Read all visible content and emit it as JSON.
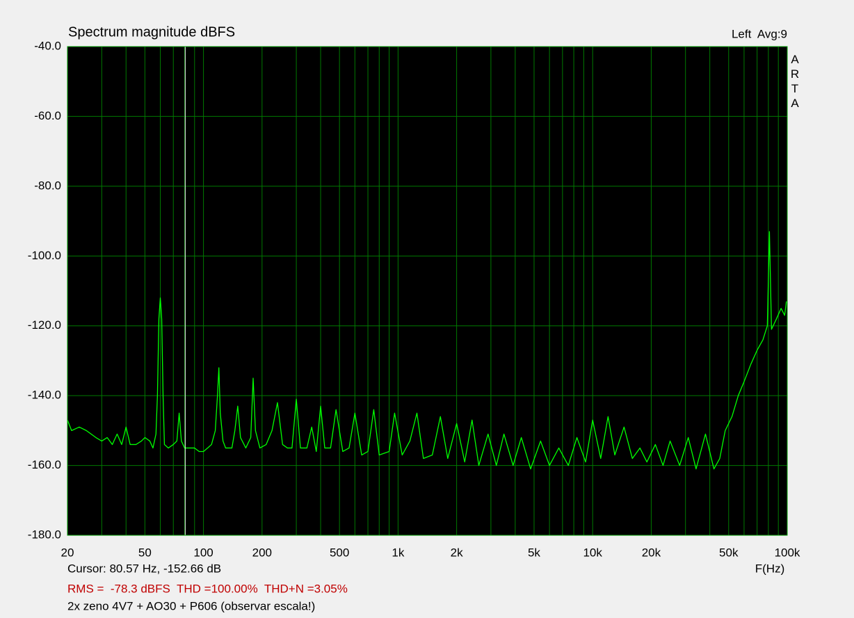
{
  "chart_data": {
    "type": "line",
    "title": "Spectrum magnitude dBFS",
    "channel_label": "Left  Avg:9",
    "side_label": "ARTA",
    "xlabel": "F(Hz)",
    "cursor": {
      "x": 80.57,
      "y": -152.66,
      "text": "Cursor: 80.57 Hz, -152.66 dB"
    },
    "stats": "RMS =  -78.3 dBFS  THD =100.00%  THD+N =3.05%",
    "description": "2x zeno 4V7 + AO30 + P606 (observar escala!)",
    "xscale": "log",
    "grid": true,
    "xlim": [
      20,
      100000
    ],
    "ylim": [
      -180,
      -40
    ],
    "xticks": [
      20,
      50,
      100,
      200,
      500,
      {
        "value": 1000,
        "label": "1k"
      },
      {
        "value": 2000,
        "label": "2k"
      },
      {
        "value": 5000,
        "label": "5k"
      },
      {
        "value": 10000,
        "label": "10k"
      },
      {
        "value": 20000,
        "label": "20k"
      },
      {
        "value": 50000,
        "label": "50k"
      },
      {
        "value": 100000,
        "label": "100k"
      }
    ],
    "xgrid_minor": [
      30,
      40,
      60,
      70,
      80,
      90,
      300,
      400,
      600,
      700,
      800,
      900,
      3000,
      4000,
      6000,
      7000,
      8000,
      9000,
      30000,
      40000,
      60000,
      70000,
      80000,
      90000
    ],
    "yticks": [
      {
        "value": -40,
        "label": "-40.0"
      },
      {
        "value": -60,
        "label": "-60.0"
      },
      {
        "value": -80,
        "label": "-80.0"
      },
      {
        "value": -100,
        "label": "-100.0"
      },
      {
        "value": -120,
        "label": "-120.0"
      },
      {
        "value": -140,
        "label": "-140.0"
      },
      {
        "value": -160,
        "label": "-160.0"
      },
      {
        "value": -180,
        "label": "-180.0"
      }
    ],
    "x": [
      20,
      21,
      23,
      25,
      28,
      30,
      32,
      34,
      36,
      38,
      40,
      42,
      45,
      48,
      50,
      53,
      55,
      57,
      58,
      59,
      60,
      61,
      62,
      63,
      66,
      70,
      73,
      75,
      77,
      80,
      85,
      90,
      95,
      100,
      105,
      110,
      115,
      118,
      120,
      122,
      126,
      130,
      140,
      145,
      150,
      155,
      165,
      175,
      180,
      185,
      195,
      210,
      225,
      240,
      255,
      270,
      285,
      300,
      315,
      340,
      360,
      380,
      400,
      420,
      450,
      480,
      520,
      560,
      600,
      650,
      700,
      750,
      800,
      900,
      960,
      1050,
      1150,
      1250,
      1350,
      1500,
      1650,
      1800,
      2000,
      2200,
      2400,
      2600,
      2900,
      3200,
      3500,
      3900,
      4300,
      4800,
      5400,
      6000,
      6700,
      7500,
      8300,
      9200,
      10000,
      11000,
      12000,
      13000,
      14500,
      16000,
      17500,
      19000,
      21000,
      23000,
      25000,
      28000,
      31000,
      34000,
      38000,
      42000,
      45000,
      48000,
      52000,
      56000,
      60000,
      65000,
      70000,
      75000,
      79000,
      81000,
      83000,
      88000,
      93000,
      97000,
      99000
    ],
    "series": [
      {
        "name": "Left",
        "color": "#00ff00",
        "values": [
          -147,
          -150,
          -149,
          -150,
          -152,
          -153,
          -152,
          -154,
          -151,
          -154,
          -149,
          -154,
          -154,
          -153,
          -152,
          -153,
          -155,
          -151,
          -140,
          -118,
          -112,
          -118,
          -140,
          -154,
          -155,
          -154,
          -153,
          -145,
          -153,
          -155,
          -155,
          -155,
          -156,
          -156,
          -155,
          -154,
          -150,
          -140,
          -132,
          -145,
          -153,
          -155,
          -155,
          -150,
          -143,
          -152,
          -155,
          -152,
          -135,
          -150,
          -155,
          -154,
          -150,
          -142,
          -154,
          -155,
          -155,
          -141,
          -155,
          -155,
          -149,
          -156,
          -143,
          -155,
          -155,
          -144,
          -156,
          -155,
          -145,
          -157,
          -156,
          -144,
          -157,
          -156,
          -145,
          -157,
          -153,
          -145,
          -158,
          -157,
          -146,
          -158,
          -148,
          -159,
          -147,
          -160,
          -151,
          -160,
          -151,
          -160,
          -152,
          -161,
          -153,
          -160,
          -155,
          -160,
          -152,
          -159,
          -147,
          -158,
          -146,
          -157,
          -149,
          -158,
          -155,
          -159,
          -154,
          -160,
          -153,
          -160,
          -152,
          -161,
          -151,
          -161,
          -158,
          -150,
          -146,
          -140,
          -136,
          -131,
          -127,
          -124,
          -120,
          -93,
          -121,
          -118,
          -115,
          -117,
          -113
        ]
      }
    ]
  }
}
